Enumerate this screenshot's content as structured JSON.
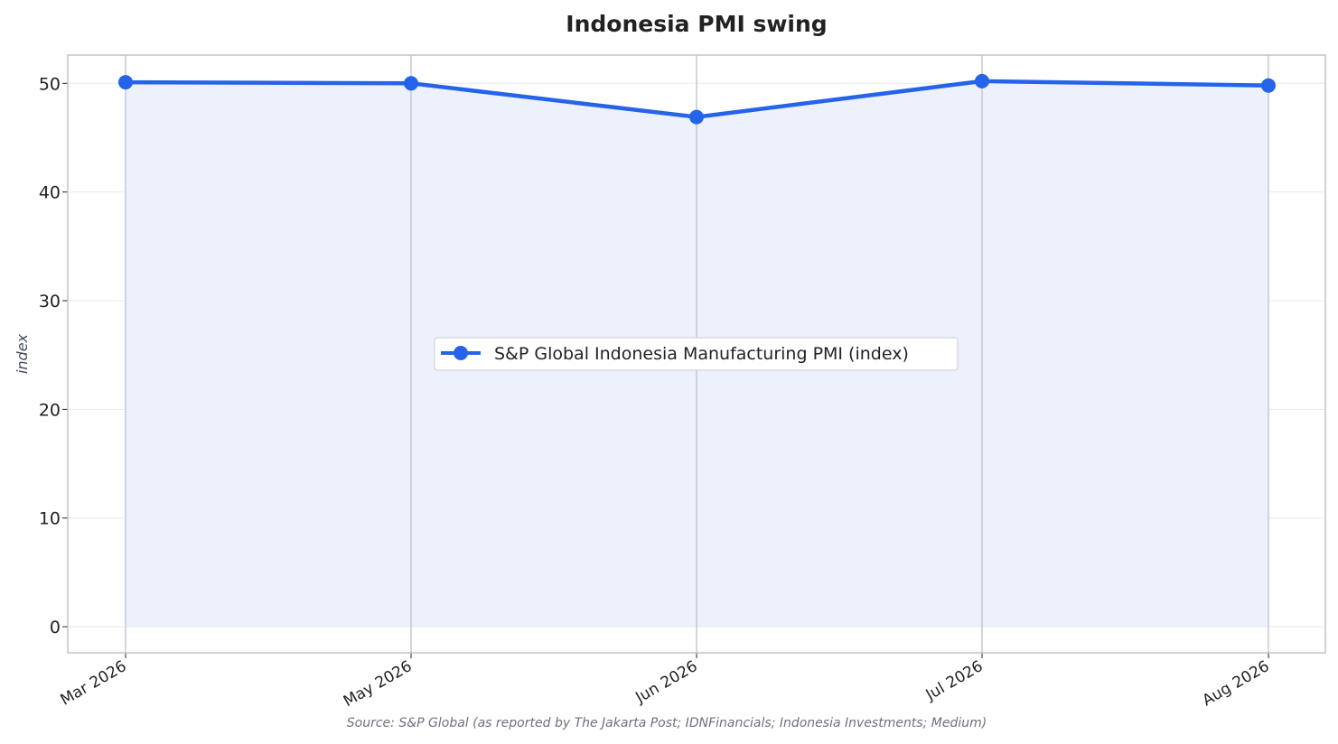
{
  "chart_data": {
    "type": "area",
    "title": "Indonesia PMI swing",
    "ylabel": "index",
    "xlabel": "",
    "ylim": [
      -2.4,
      52.6
    ],
    "yticks": [
      0,
      10,
      20,
      30,
      40,
      50
    ],
    "categories": [
      "Mar 2026",
      "May 2026",
      "Jun 2026",
      "Jul 2026",
      "Aug 2026"
    ],
    "series": [
      {
        "name": "S&P Global Indonesia Manufacturing PMI (index)",
        "values": [
          50.1,
          50.0,
          46.9,
          50.2,
          49.8
        ],
        "color": "#2563eb",
        "fill_color": "#ecf1fc"
      }
    ],
    "grid": true,
    "legend_position": "center",
    "source": "Source: S&P Global (as reported by The Jakarta Post; IDNFinancials; Indonesia Investments; Medium)"
  }
}
